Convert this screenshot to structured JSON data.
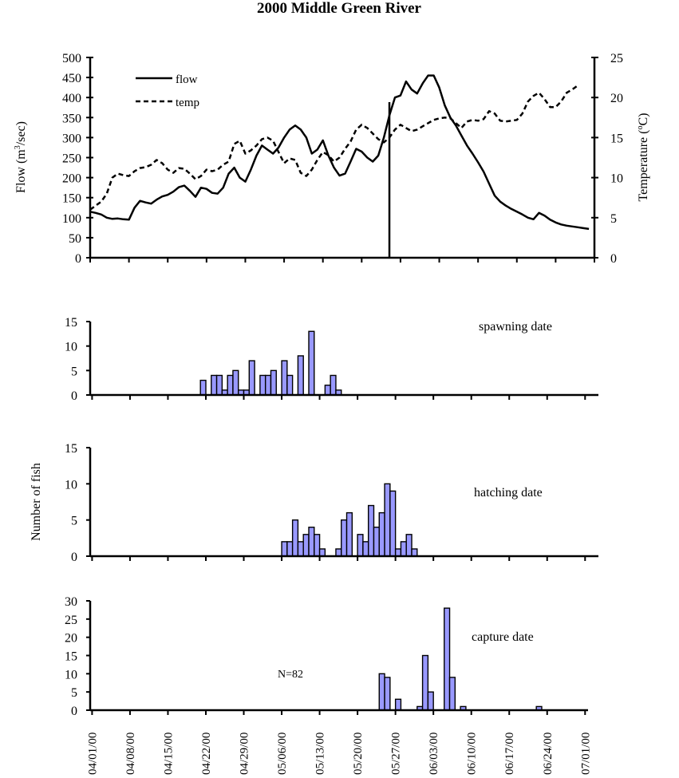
{
  "chart_data": [
    {
      "type": "line",
      "title": "2000 Middle Green River",
      "ylabel": "Flow (m3/sec)",
      "ylabel_parts": [
        "Flow (m",
        "3",
        "/sec)"
      ],
      "y2label": "Temperature (oC)",
      "y2label_parts": [
        "Temperature (",
        "o",
        "C)"
      ],
      "ylim": [
        0,
        500
      ],
      "y2lim": [
        0,
        25
      ],
      "yticks": [
        0,
        50,
        100,
        150,
        200,
        250,
        300,
        350,
        400,
        450,
        500
      ],
      "y2ticks": [
        0,
        5,
        10,
        15,
        20,
        25
      ],
      "xlim": [
        "04/01/00",
        "07/01/00"
      ],
      "legend": "top-left",
      "grid": false,
      "marker_line_date": "05/24/00",
      "series": [
        {
          "name": "flow",
          "axis": "left",
          "style": "solid",
          "start_date": "04/01/00",
          "values": [
            115,
            112,
            108,
            100,
            97,
            98,
            96,
            95,
            125,
            142,
            138,
            135,
            145,
            153,
            157,
            165,
            176,
            180,
            167,
            152,
            175,
            172,
            162,
            160,
            175,
            210,
            225,
            200,
            190,
            220,
            255,
            280,
            270,
            260,
            275,
            300,
            320,
            330,
            320,
            300,
            260,
            270,
            293,
            255,
            225,
            205,
            210,
            240,
            272,
            265,
            250,
            240,
            255,
            300,
            355,
            400,
            405,
            440,
            420,
            410,
            435,
            455,
            455,
            425,
            380,
            350,
            330,
            305,
            280,
            260,
            238,
            215,
            185,
            155,
            140,
            130,
            122,
            115,
            108,
            100,
            96,
            112,
            105,
            95,
            88,
            83,
            80,
            78,
            76,
            74,
            72
          ]
        },
        {
          "name": "temp",
          "axis": "right",
          "style": "dashed",
          "start_date": "04/01/00",
          "values": [
            6,
            6.5,
            7,
            8,
            10,
            10.5,
            10.3,
            10.2,
            10.8,
            11.2,
            11.3,
            11.6,
            12.2,
            11.8,
            11,
            10.6,
            11.2,
            11.1,
            10.5,
            9.8,
            10.2,
            11,
            10.8,
            11,
            11.6,
            12,
            14.2,
            14.6,
            13,
            13.4,
            14,
            14.8,
            15,
            14.6,
            13.2,
            11.8,
            12.4,
            12.2,
            10.6,
            10.2,
            11,
            12.2,
            13.2,
            12.8,
            12,
            12.5,
            13.6,
            14.5,
            16,
            16.6,
            16.2,
            15.5,
            14.8,
            14.4,
            15,
            16,
            16.6,
            16.2,
            15.8,
            16,
            16.4,
            16.8,
            17.2,
            17.4,
            17.5,
            17.4,
            16.8,
            16.2,
            17,
            17.2,
            17.1,
            17.3,
            18.3,
            18,
            17.1,
            17,
            17.1,
            17.2,
            18,
            19.5,
            20.2,
            20.6,
            19.8,
            18.8,
            18.8,
            19.5,
            20.6,
            21,
            21.5
          ]
        }
      ]
    },
    {
      "type": "bar",
      "annotation": "spawning date",
      "ylim": [
        0,
        15
      ],
      "yticks": [
        0,
        5,
        10,
        15
      ],
      "dates": [
        "04/21",
        "04/23",
        "04/24",
        "04/25",
        "04/26",
        "04/27",
        "04/28",
        "04/29",
        "04/30",
        "05/01",
        "05/02",
        "05/03",
        "05/05",
        "05/06",
        "05/08",
        "05/10",
        "05/13",
        "05/14",
        "05/15"
      ],
      "values": [
        3,
        4,
        4,
        1,
        4,
        5,
        1,
        1,
        7,
        4,
        4,
        5,
        7,
        4,
        8,
        13,
        2,
        4,
        1
      ]
    },
    {
      "type": "bar",
      "annotation": "hatching date",
      "ylabel": "Number of fish",
      "ylim": [
        0,
        15
      ],
      "yticks": [
        0,
        5,
        10,
        15
      ],
      "dates": [
        "05/05",
        "05/06",
        "05/07",
        "05/08",
        "05/09",
        "05/10",
        "05/11",
        "05/12",
        "05/15",
        "05/16",
        "05/17",
        "05/19",
        "05/20",
        "05/21",
        "05/22",
        "05/23",
        "05/24",
        "05/25",
        "05/26",
        "05/27",
        "05/28",
        "05/29"
      ],
      "values": [
        2,
        2,
        5,
        2,
        3,
        4,
        3,
        1,
        1,
        5,
        6,
        3,
        2,
        7,
        4,
        6,
        10,
        9,
        1,
        2,
        3,
        1
      ]
    },
    {
      "type": "bar",
      "annotation": "capture date",
      "note": "N=82",
      "ylim": [
        0,
        30
      ],
      "yticks": [
        0,
        5,
        10,
        15,
        20,
        25,
        30
      ],
      "dates": [
        "05/23",
        "05/24",
        "05/26",
        "05/30",
        "05/31",
        "06/02",
        "06/05",
        "06/06",
        "06/08",
        "06/22"
      ],
      "values": [
        10,
        9,
        3,
        1,
        15,
        5,
        28,
        9,
        1,
        1
      ],
      "xticklabels": [
        "04/01/00",
        "04/08/00",
        "04/15/00",
        "04/22/00",
        "04/29/00",
        "05/06/00",
        "05/13/00",
        "05/20/00",
        "05/27/00",
        "06/03/00",
        "06/10/00",
        "06/17/00",
        "06/24/00",
        "07/01/00"
      ]
    }
  ],
  "colors": {
    "bar_fill": "#9999ff",
    "bar_stroke": "#000000",
    "line": "#000000"
  }
}
